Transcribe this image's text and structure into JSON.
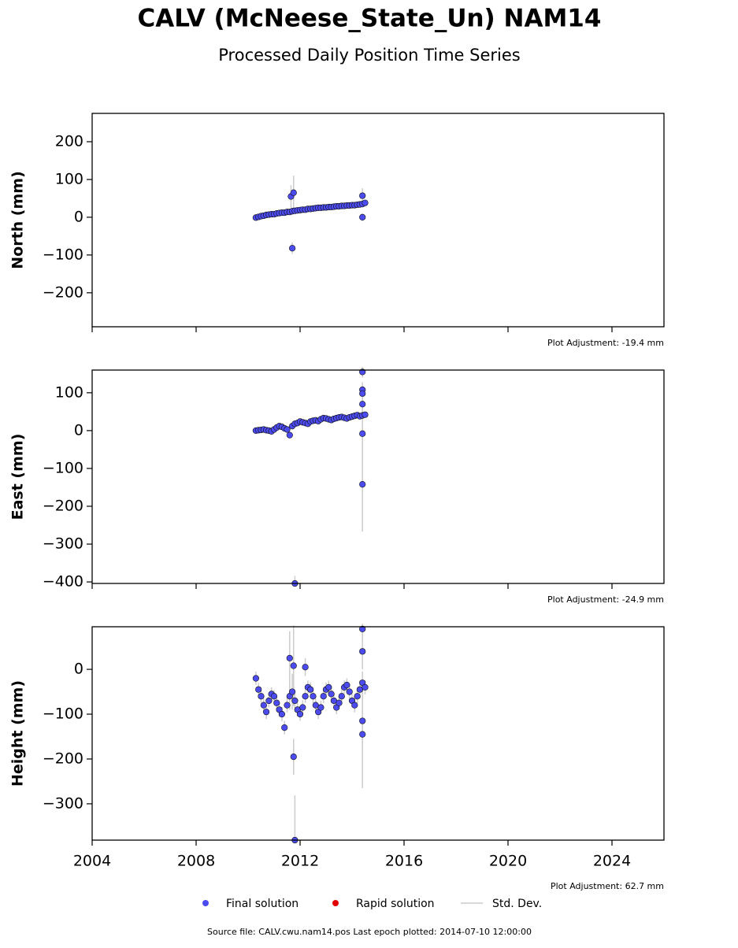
{
  "title": "CALV (McNeese_State_Un) NAM14",
  "subtitle": "Processed Daily Position Time Series",
  "legend": [
    {
      "name": "Final solution",
      "color": "#4b4bef"
    },
    {
      "name": "Rapid solution",
      "color": "#e00000"
    },
    {
      "name": "Std. Dev.",
      "color": "#cccccc"
    }
  ],
  "footer": "Source file: CALV.cwu.nam14.pos  Last epoch plotted: 2014-07-10 12:00:00",
  "chart_data": [
    {
      "type": "scatter",
      "y_label": "North (mm)",
      "annotation": "Plot Adjustment: -19.4 mm",
      "xlim": [
        2004,
        2026
      ],
      "xticks": [
        2004,
        2008,
        2012,
        2016,
        2020,
        2024
      ],
      "ylim": [
        -290,
        275
      ],
      "yticks": [
        {
          "value": -200,
          "label": "−200"
        },
        {
          "value": -100,
          "label": "−100"
        },
        0,
        100,
        200
      ],
      "series": [
        {
          "name": "Final solution",
          "color": "#4b4bef",
          "x": [
            2010.3,
            2010.4,
            2010.5,
            2010.6,
            2010.7,
            2010.8,
            2010.9,
            2011.0,
            2011.1,
            2011.2,
            2011.3,
            2011.4,
            2011.5,
            2011.6,
            2011.7,
            2011.8,
            2011.9,
            2012.0,
            2012.1,
            2012.2,
            2012.3,
            2012.4,
            2012.5,
            2012.6,
            2012.7,
            2012.8,
            2012.9,
            2013.0,
            2013.1,
            2013.2,
            2013.3,
            2013.4,
            2013.5,
            2013.6,
            2013.7,
            2013.8,
            2013.9,
            2014.0,
            2014.1,
            2014.2,
            2014.3,
            2014.4,
            2014.5,
            2011.65,
            2011.75,
            2011.7,
            2014.4,
            2014.4
          ],
          "values": [
            -1,
            1,
            3,
            4,
            6,
            7,
            8,
            8,
            10,
            11,
            12,
            12,
            14,
            14,
            16,
            17,
            18,
            19,
            20,
            20,
            22,
            22,
            23,
            24,
            25,
            25,
            26,
            26,
            27,
            27,
            28,
            29,
            29,
            30,
            30,
            31,
            31,
            32,
            32,
            33,
            34,
            35,
            38,
            55,
            65,
            -82,
            57,
            0
          ],
          "errors": [
            6,
            6,
            5,
            5,
            6,
            5,
            5,
            6,
            5,
            6,
            6,
            5,
            6,
            8,
            9,
            6,
            5,
            5,
            6,
            5,
            5,
            6,
            5,
            5,
            6,
            5,
            5,
            6,
            5,
            5,
            6,
            5,
            5,
            6,
            5,
            5,
            6,
            5,
            6,
            6,
            7,
            8,
            6,
            30,
            45,
            15,
            20,
            10
          ]
        }
      ]
    },
    {
      "type": "scatter",
      "y_label": "East (mm)",
      "annotation": "Plot Adjustment: -24.9 mm",
      "xlim": [
        2004,
        2026
      ],
      "xticks": [
        2004,
        2008,
        2012,
        2016,
        2020,
        2024
      ],
      "ylim": [
        -404,
        160
      ],
      "yticks": [
        {
          "value": -400,
          "label": "−400"
        },
        {
          "value": -300,
          "label": "−300"
        },
        {
          "value": -200,
          "label": "−200"
        },
        {
          "value": -100,
          "label": "−100"
        },
        0,
        100
      ],
      "series": [
        {
          "name": "Final solution",
          "color": "#4b4bef",
          "x": [
            2010.3,
            2010.4,
            2010.5,
            2010.6,
            2010.7,
            2010.8,
            2010.9,
            2011.0,
            2011.1,
            2011.2,
            2011.3,
            2011.4,
            2011.5,
            2011.6,
            2011.7,
            2011.8,
            2011.9,
            2012.0,
            2012.1,
            2012.2,
            2012.3,
            2012.4,
            2012.5,
            2012.6,
            2012.7,
            2012.8,
            2012.9,
            2013.0,
            2013.1,
            2013.2,
            2013.3,
            2013.4,
            2013.5,
            2013.6,
            2013.7,
            2013.8,
            2013.9,
            2014.0,
            2014.1,
            2014.2,
            2014.3,
            2014.4,
            2014.5,
            2014.4,
            2014.4,
            2014.4,
            2014.4,
            2014.4,
            2014.4,
            2011.8
          ],
          "values": [
            0,
            1,
            2,
            3,
            1,
            0,
            -2,
            3,
            8,
            12,
            10,
            6,
            3,
            -12,
            12,
            18,
            20,
            24,
            22,
            20,
            18,
            24,
            26,
            27,
            25,
            30,
            33,
            32,
            30,
            28,
            31,
            33,
            35,
            36,
            34,
            32,
            35,
            37,
            39,
            41,
            38,
            40,
            42,
            155,
            108,
            98,
            70,
            -8,
            -142,
            -404
          ],
          "errors": [
            6,
            6,
            5,
            5,
            6,
            5,
            5,
            6,
            5,
            6,
            6,
            5,
            6,
            8,
            9,
            6,
            5,
            5,
            6,
            5,
            5,
            6,
            5,
            5,
            6,
            5,
            5,
            6,
            5,
            5,
            6,
            5,
            5,
            6,
            5,
            5,
            6,
            5,
            6,
            6,
            7,
            8,
            6,
            15,
            20,
            20,
            25,
            80,
            125,
            20
          ]
        }
      ]
    },
    {
      "type": "scatter",
      "y_label": "Height (mm)",
      "annotation": "Plot Adjustment: 62.7 mm",
      "xlim": [
        2004,
        2026
      ],
      "xticks": [
        2004,
        2008,
        2012,
        2016,
        2020,
        2024
      ],
      "ylim": [
        -381,
        95
      ],
      "yticks": [
        {
          "value": -300,
          "label": "−300"
        },
        {
          "value": -200,
          "label": "−200"
        },
        {
          "value": -100,
          "label": "−100"
        },
        0
      ],
      "series": [
        {
          "name": "Final solution",
          "color": "#4b4bef",
          "x": [
            2010.3,
            2010.4,
            2010.5,
            2010.6,
            2010.7,
            2010.8,
            2010.9,
            2011.0,
            2011.1,
            2011.2,
            2011.3,
            2011.4,
            2011.5,
            2011.6,
            2011.7,
            2011.8,
            2011.9,
            2012.0,
            2012.1,
            2012.2,
            2012.3,
            2012.4,
            2012.5,
            2012.6,
            2012.7,
            2012.8,
            2012.9,
            2013.0,
            2013.1,
            2013.2,
            2013.3,
            2013.4,
            2013.5,
            2013.6,
            2013.7,
            2013.8,
            2013.9,
            2014.0,
            2014.1,
            2014.2,
            2014.3,
            2014.4,
            2014.5,
            2011.6,
            2011.75,
            2011.75,
            2011.8,
            2014.4,
            2014.4,
            2014.4,
            2014.4,
            2012.2
          ],
          "values": [
            -20,
            -45,
            -60,
            -80,
            -95,
            -70,
            -55,
            -60,
            -75,
            -90,
            -100,
            -130,
            -80,
            -60,
            -50,
            -70,
            -90,
            -100,
            -85,
            -60,
            -40,
            -45,
            -60,
            -80,
            -95,
            -85,
            -60,
            -45,
            -40,
            -55,
            -70,
            -85,
            -75,
            -60,
            -40,
            -35,
            -50,
            -70,
            -80,
            -60,
            -45,
            -30,
            -40,
            25,
            8,
            -195,
            -381,
            90,
            40,
            -115,
            -145,
            5
          ],
          "errors": [
            15,
            15,
            14,
            15,
            16,
            15,
            15,
            14,
            15,
            16,
            16,
            15,
            16,
            30,
            40,
            16,
            15,
            15,
            16,
            15,
            15,
            16,
            15,
            15,
            16,
            15,
            15,
            16,
            15,
            15,
            16,
            15,
            15,
            16,
            15,
            15,
            16,
            15,
            16,
            16,
            20,
            25,
            16,
            60,
            90,
            40,
            100,
            30,
            40,
            60,
            120,
            20
          ]
        }
      ]
    }
  ]
}
